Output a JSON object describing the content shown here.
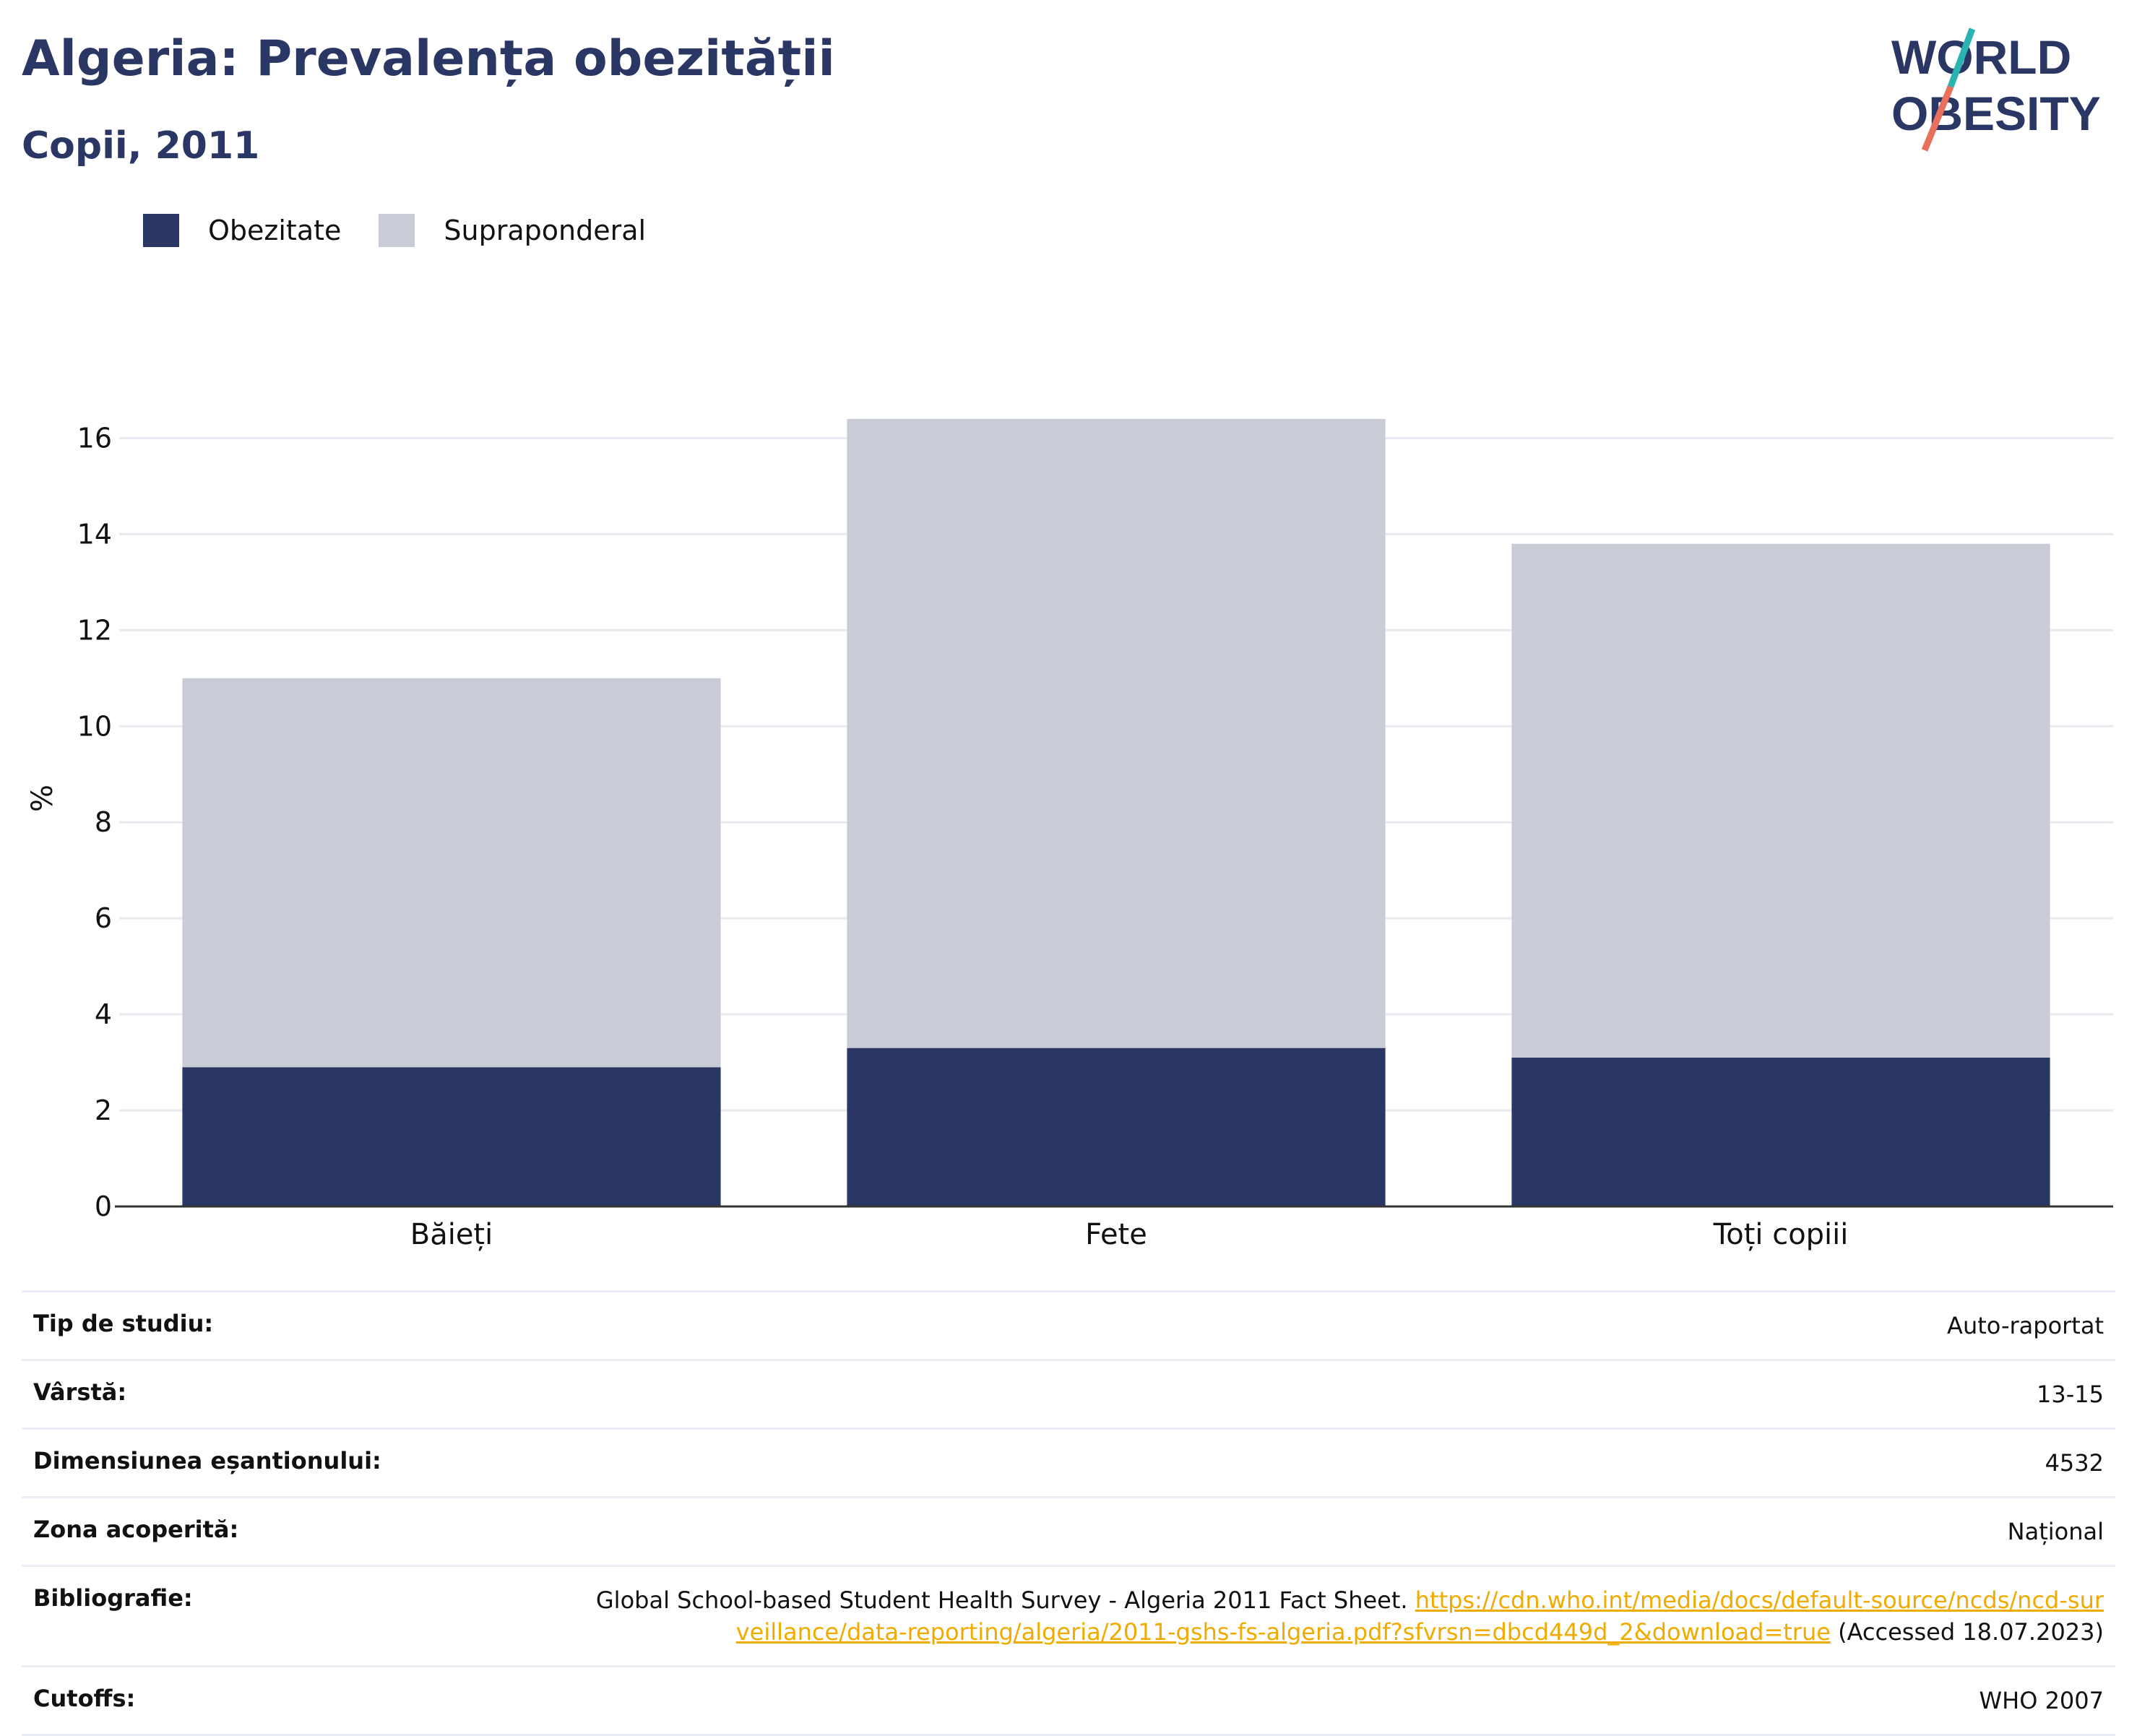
{
  "header": {
    "title": "Algeria: Prevalența obezității",
    "subtitle": "Copii, 2011"
  },
  "logo": {
    "line1": "WORLD",
    "line2": "OBESITY",
    "colors": {
      "text": "#2a3764",
      "slash_top": "#2bb3b1",
      "slash_bottom": "#e8705c"
    }
  },
  "legend": [
    {
      "label": "Obezitate",
      "color": "#2a3764"
    },
    {
      "label": "Supraponderal",
      "color": "#c9cbd6"
    }
  ],
  "chart_data": {
    "type": "bar",
    "stacked": true,
    "categories": [
      "Băieți",
      "Fete",
      "Toți copiii"
    ],
    "series": [
      {
        "name": "Obezitate",
        "color": "#2a3764",
        "values": [
          2.9,
          3.3,
          3.1
        ]
      },
      {
        "name": "Supraponderal",
        "color": "#c9cbd6",
        "values": [
          8.1,
          13.1,
          10.7
        ]
      }
    ],
    "ylabel": "%",
    "ylim": [
      0,
      17
    ],
    "yticks": [
      0,
      2,
      4,
      6,
      8,
      10,
      12,
      14,
      16
    ],
    "grid": true,
    "legend_position": "top-left"
  },
  "info": {
    "rows": [
      {
        "label": "Tip de studiu:",
        "value": "Auto-raportat"
      },
      {
        "label": "Vârstă:",
        "value": "13-15"
      },
      {
        "label": "Dimensiunea eșantionului:",
        "value": "4532"
      },
      {
        "label": "Zona acoperită:",
        "value": "Național"
      }
    ],
    "bibliography": {
      "label": "Bibliografie:",
      "text": "Global School-based Student Health Survey - Algeria 2011 Fact Sheet.",
      "link": "https://cdn.who.int/media/docs/default-source/ncds/ncd-surveillance/data-reporting/algeria/2011-gshs-fs-algeria.pdf?sfvrsn=dbcd449d_2&download=true",
      "accessed": "(Accessed 18.07.2023)"
    },
    "cutoffs": {
      "label": "Cutoffs:",
      "value": "WHO 2007"
    }
  }
}
